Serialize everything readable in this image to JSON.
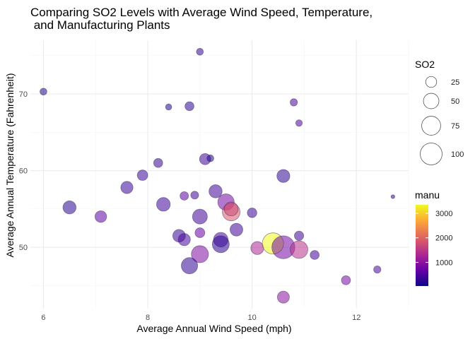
{
  "chart_data": {
    "type": "scatter",
    "title_line1": "Comparing SO2 Levels with Average Wind Speed, Temperature,",
    "title_line2": " and Manufacturing Plants",
    "xlabel": "Average Annual Wind Speed (mph)",
    "ylabel": "Average Annual Temperature (Fahrenheit)",
    "xlim": [
      5.75,
      13.0
    ],
    "ylim": [
      42.0,
      77.0
    ],
    "x_ticks": [
      6,
      8,
      10,
      12
    ],
    "y_ticks": [
      50,
      60,
      70
    ],
    "grid": true,
    "size_legend": {
      "title": "SO2",
      "values": [
        25,
        50,
        75,
        100
      ]
    },
    "color_legend": {
      "title": "manu",
      "ticks": [
        1000,
        2000,
        3000
      ],
      "range": [
        35,
        3344
      ],
      "colors": [
        "#0d0887",
        "#6a00a8",
        "#b12a90",
        "#e16462",
        "#fca636",
        "#f0f921"
      ]
    },
    "points": [
      {
        "x": 6.0,
        "y": 70.3,
        "so2": 10,
        "manu": 200
      },
      {
        "x": 9.0,
        "y": 75.5,
        "so2": 10,
        "manu": 300
      },
      {
        "x": 8.4,
        "y": 68.3,
        "so2": 8,
        "manu": 150
      },
      {
        "x": 8.8,
        "y": 68.4,
        "so2": 17,
        "manu": 250
      },
      {
        "x": 10.8,
        "y": 68.9,
        "so2": 11,
        "manu": 450
      },
      {
        "x": 10.9,
        "y": 66.2,
        "so2": 9,
        "manu": 500
      },
      {
        "x": 8.2,
        "y": 61.0,
        "so2": 17,
        "manu": 300
      },
      {
        "x": 9.1,
        "y": 61.5,
        "so2": 26,
        "manu": 400
      },
      {
        "x": 9.2,
        "y": 61.6,
        "so2": 10,
        "manu": 120
      },
      {
        "x": 7.9,
        "y": 59.4,
        "so2": 23,
        "manu": 350
      },
      {
        "x": 10.6,
        "y": 59.3,
        "so2": 35,
        "manu": 300
      },
      {
        "x": 7.6,
        "y": 57.8,
        "so2": 31,
        "manu": 350
      },
      {
        "x": 8.7,
        "y": 56.7,
        "so2": 15,
        "manu": 600
      },
      {
        "x": 8.9,
        "y": 56.8,
        "so2": 13,
        "manu": 400
      },
      {
        "x": 9.3,
        "y": 57.3,
        "so2": 36,
        "manu": 400
      },
      {
        "x": 12.7,
        "y": 56.6,
        "so2": 3,
        "manu": 300
      },
      {
        "x": 6.5,
        "y": 55.2,
        "so2": 36,
        "manu": 250
      },
      {
        "x": 8.3,
        "y": 55.6,
        "so2": 39,
        "manu": 400
      },
      {
        "x": 9.5,
        "y": 55.9,
        "so2": 56,
        "manu": 800
      },
      {
        "x": 9.6,
        "y": 54.6,
        "so2": 65,
        "manu": 1900
      },
      {
        "x": 9.6,
        "y": 55.0,
        "so2": 40,
        "manu": 1700
      },
      {
        "x": 7.1,
        "y": 54.0,
        "so2": 28,
        "manu": 600
      },
      {
        "x": 9.0,
        "y": 54.0,
        "so2": 46,
        "manu": 400
      },
      {
        "x": 10.0,
        "y": 54.5,
        "so2": 19,
        "manu": 350
      },
      {
        "x": 9.7,
        "y": 52.3,
        "so2": 34,
        "manu": 400
      },
      {
        "x": 8.6,
        "y": 51.5,
        "so2": 33,
        "manu": 350
      },
      {
        "x": 8.7,
        "y": 51.0,
        "so2": 31,
        "manu": 450
      },
      {
        "x": 9.0,
        "y": 51.9,
        "so2": 20,
        "manu": 700
      },
      {
        "x": 9.4,
        "y": 51.0,
        "so2": 44,
        "manu": 450
      },
      {
        "x": 10.9,
        "y": 51.5,
        "so2": 18,
        "manu": 400
      },
      {
        "x": 9.4,
        "y": 50.4,
        "so2": 60,
        "manu": 250
      },
      {
        "x": 10.1,
        "y": 49.9,
        "so2": 35,
        "manu": 1300
      },
      {
        "x": 10.4,
        "y": 50.5,
        "so2": 94,
        "manu": 3344
      },
      {
        "x": 10.6,
        "y": 50.0,
        "so2": 110,
        "manu": 800
      },
      {
        "x": 10.9,
        "y": 49.7,
        "so2": 65,
        "manu": 1450
      },
      {
        "x": 11.2,
        "y": 49.0,
        "so2": 17,
        "manu": 400
      },
      {
        "x": 9.0,
        "y": 49.1,
        "so2": 61,
        "manu": 900
      },
      {
        "x": 8.8,
        "y": 47.6,
        "so2": 56,
        "manu": 300
      },
      {
        "x": 11.8,
        "y": 45.7,
        "so2": 17,
        "manu": 800
      },
      {
        "x": 12.4,
        "y": 47.1,
        "so2": 11,
        "manu": 450
      },
      {
        "x": 10.6,
        "y": 43.5,
        "so2": 30,
        "manu": 1000
      }
    ]
  }
}
